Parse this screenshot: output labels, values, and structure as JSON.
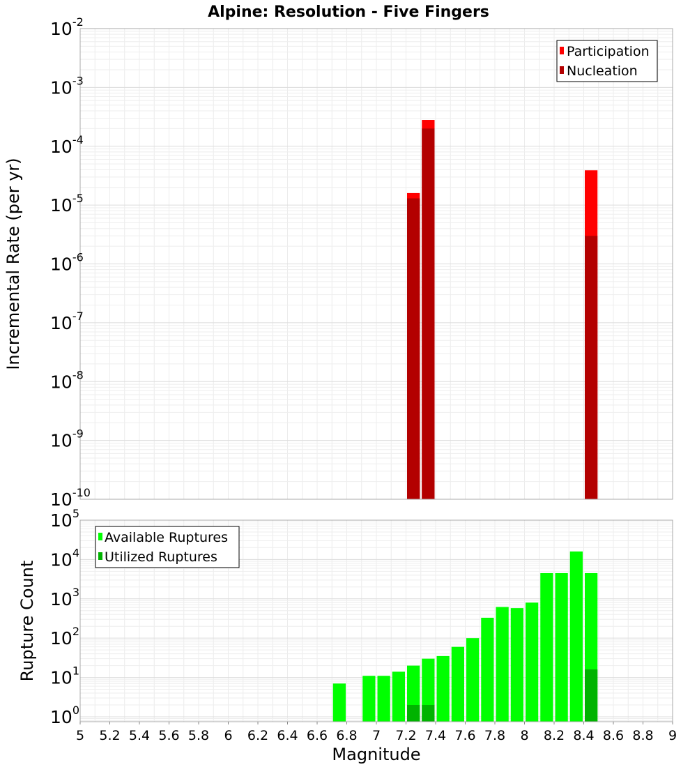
{
  "chart_data": [
    {
      "type": "bar",
      "title": "Alpine: Resolution - Five Fingers",
      "xlabel": "",
      "ylabel": "Incremental Rate (per yr)",
      "yscale": "log",
      "xlim": [
        5,
        9
      ],
      "ylim": [
        1e-10,
        0.01
      ],
      "y_ticks": [
        {
          "base": "10",
          "exp": "-10",
          "value": 1e-10
        },
        {
          "base": "10",
          "exp": "-9",
          "value": 1e-09
        },
        {
          "base": "10",
          "exp": "-8",
          "value": 1e-08
        },
        {
          "base": "10",
          "exp": "-7",
          "value": 1e-07
        },
        {
          "base": "10",
          "exp": "-6",
          "value": 1e-06
        },
        {
          "base": "10",
          "exp": "-5",
          "value": 1e-05
        },
        {
          "base": "10",
          "exp": "-4",
          "value": 0.0001
        },
        {
          "base": "10",
          "exp": "-3",
          "value": 0.001
        },
        {
          "base": "10",
          "exp": "-2",
          "value": 0.01
        }
      ],
      "legend_position": "top-right",
      "series": [
        {
          "name": "Participation",
          "color": "#ff0000",
          "x": [
            7.25,
            7.35,
            8.45
          ],
          "values": [
            1.6e-05,
            0.00028,
            3.9e-05
          ]
        },
        {
          "name": "Nucleation",
          "color": "#b30000",
          "x": [
            7.25,
            7.35,
            8.45
          ],
          "values": [
            1.3e-05,
            0.0002,
            3e-06
          ]
        }
      ]
    },
    {
      "type": "bar",
      "title": "",
      "xlabel": "Magnitude",
      "ylabel": "Rupture Count",
      "yscale": "log",
      "xlim": [
        5,
        9
      ],
      "ylim": [
        0.75,
        100000
      ],
      "y_ticks": [
        {
          "base": "10",
          "exp": "0",
          "value": 1
        },
        {
          "base": "10",
          "exp": "1",
          "value": 10
        },
        {
          "base": "10",
          "exp": "2",
          "value": 100
        },
        {
          "base": "10",
          "exp": "3",
          "value": 1000
        },
        {
          "base": "10",
          "exp": "4",
          "value": 10000
        },
        {
          "base": "10",
          "exp": "5",
          "value": 100000
        }
      ],
      "x_ticks": [
        "5",
        "5.2",
        "5.4",
        "5.6",
        "5.8",
        "6",
        "6.2",
        "6.4",
        "6.6",
        "6.8",
        "7",
        "7.2",
        "7.4",
        "7.6",
        "7.8",
        "8",
        "8.2",
        "8.4",
        "8.6",
        "8.8",
        "9"
      ],
      "legend_position": "top-left",
      "series": [
        {
          "name": "Available Ruptures",
          "color": "#00ff00",
          "x": [
            6.75,
            6.95,
            7.05,
            7.15,
            7.25,
            7.35,
            7.45,
            7.55,
            7.65,
            7.75,
            7.85,
            7.95,
            8.05,
            8.15,
            8.25,
            8.35,
            8.45
          ],
          "values": [
            7,
            11,
            11,
            14,
            20,
            30,
            35,
            60,
            100,
            330,
            620,
            580,
            800,
            4500,
            4500,
            16000,
            4500
          ]
        },
        {
          "name": "Utilized Ruptures",
          "color": "#00b300",
          "x": [
            7.25,
            7.35,
            8.45
          ],
          "values": [
            2,
            2,
            16
          ]
        }
      ]
    }
  ]
}
